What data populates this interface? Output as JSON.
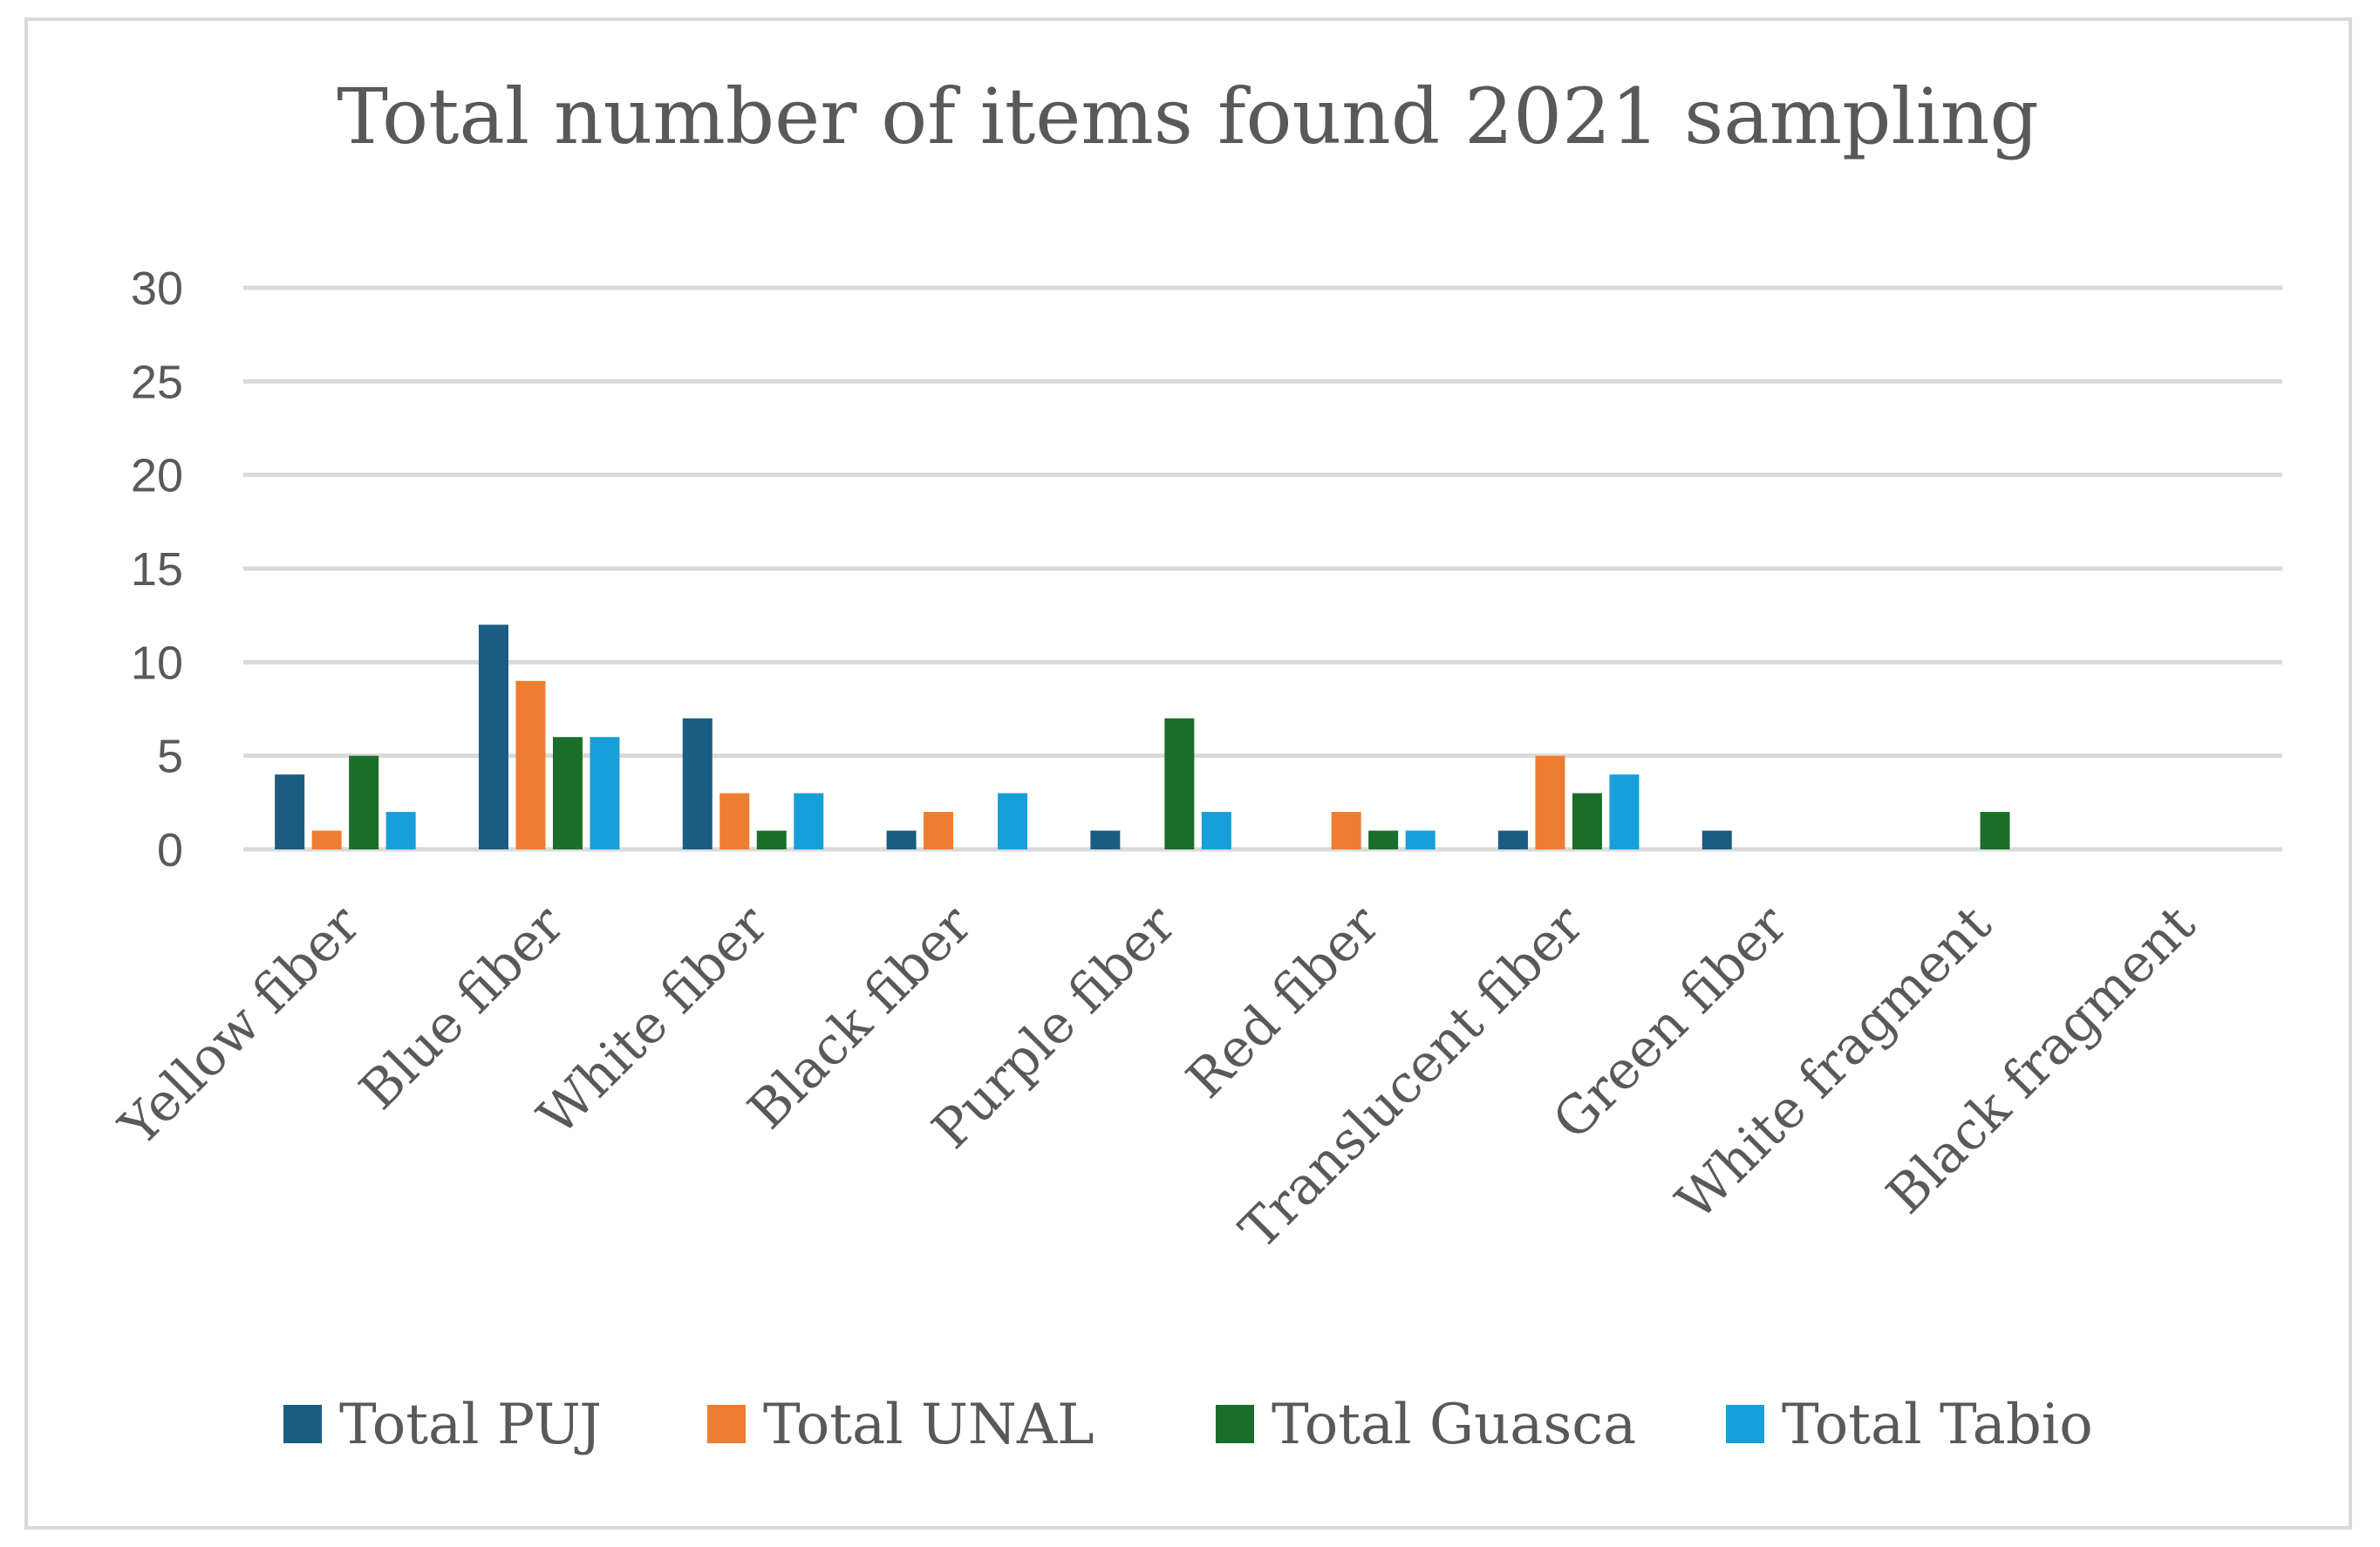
{
  "chart_data": {
    "type": "bar",
    "title": "Total number of items found  2021 sampling",
    "xlabel": "",
    "ylabel": "",
    "ylim": [
      0,
      30
    ],
    "yticks": [
      0,
      5,
      10,
      15,
      20,
      25,
      30
    ],
    "grid": true,
    "legend_position": "bottom",
    "categories": [
      "Yellow fiber",
      "Blue fiber",
      "White fiber",
      "Black fiber",
      "Purple fiber",
      "Red fiber",
      "Translucent fiber",
      "Green fiber",
      "White fragment",
      "Black fragment"
    ],
    "series": [
      {
        "name": "Total PUJ",
        "color": "#1a5c82",
        "values": [
          4,
          12,
          7,
          1,
          1,
          0,
          1,
          1,
          0,
          0
        ]
      },
      {
        "name": "Total UNAL",
        "color": "#ed7d31",
        "values": [
          1,
          9,
          3,
          2,
          0,
          2,
          5,
          0,
          0,
          0
        ]
      },
      {
        "name": "Total Guasca",
        "color": "#1b6e2a",
        "values": [
          5,
          6,
          1,
          0,
          7,
          1,
          3,
          0,
          2,
          0
        ]
      },
      {
        "name": "Total Tabio",
        "color": "#169fd8",
        "values": [
          2,
          6,
          3,
          3,
          2,
          1,
          4,
          0,
          0,
          0
        ]
      }
    ]
  }
}
